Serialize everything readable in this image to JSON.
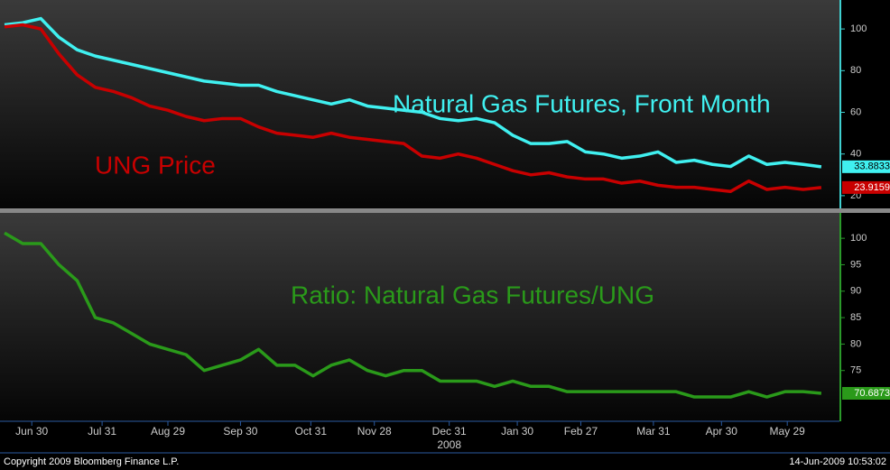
{
  "chart_data": [
    {
      "type": "line",
      "x": [
        -12,
        -4,
        4,
        12,
        20,
        28,
        36,
        44,
        52,
        60,
        68,
        76,
        84,
        92,
        100,
        108,
        116,
        124,
        132,
        140,
        148,
        156,
        164,
        172,
        180,
        188,
        196,
        204,
        212,
        220,
        228,
        236,
        244,
        252,
        260,
        268,
        276,
        284,
        292,
        300,
        308,
        316,
        324,
        332,
        340,
        348
      ],
      "xlim": [
        -14,
        356
      ],
      "ylim": [
        13.9,
        113.9
      ],
      "yticks": [
        20,
        40,
        60,
        80,
        100
      ],
      "axis_color": "#3fd0d0",
      "series": [
        {
          "name": "Natural Gas Futures, Front Month",
          "color": "#40f0f0",
          "values": [
            102,
            103,
            105,
            96,
            90,
            87,
            85,
            83,
            81,
            79,
            77,
            75,
            74,
            73,
            73,
            70,
            68,
            66,
            64,
            66,
            63,
            62,
            61,
            60,
            57,
            56,
            57,
            55,
            49,
            45,
            45,
            46,
            41,
            40,
            38,
            39,
            41,
            36,
            37,
            35,
            34,
            39,
            35,
            36,
            35,
            33.8833
          ]
        },
        {
          "name": "UNG Price",
          "color": "#c80000",
          "values": [
            101,
            102,
            100,
            88,
            78,
            72,
            70,
            67,
            63,
            61,
            58,
            56,
            57,
            57,
            53,
            50,
            49,
            48,
            50,
            48,
            47,
            46,
            45,
            39,
            38,
            40,
            38,
            35,
            32,
            30,
            31,
            29,
            28,
            28,
            26,
            27,
            25,
            24,
            24,
            23,
            22,
            27,
            23,
            24,
            23,
            23.9159
          ]
        }
      ]
    },
    {
      "type": "line",
      "x": [
        -12,
        -4,
        4,
        12,
        20,
        28,
        36,
        44,
        52,
        60,
        68,
        76,
        84,
        92,
        100,
        108,
        116,
        124,
        132,
        140,
        148,
        156,
        164,
        172,
        180,
        188,
        196,
        204,
        212,
        220,
        228,
        236,
        244,
        252,
        260,
        268,
        276,
        284,
        292,
        300,
        308,
        316,
        324,
        332,
        340,
        348
      ],
      "xlim": [
        -14,
        356
      ],
      "xticks": [
        {
          "value": 0,
          "label": "Jun 30"
        },
        {
          "value": 31,
          "label": "Jul 31"
        },
        {
          "value": 60,
          "label": "Aug 29"
        },
        {
          "value": 92,
          "label": "Sep 30"
        },
        {
          "value": 123,
          "label": "Oct 31"
        },
        {
          "value": 151,
          "label": "Nov 28"
        },
        {
          "value": 184,
          "label": "Dec 31"
        },
        {
          "value": 214,
          "label": "Jan 30"
        },
        {
          "value": 242,
          "label": "Feb 27"
        },
        {
          "value": 274,
          "label": "Mar 31"
        },
        {
          "value": 304,
          "label": "Apr 30"
        },
        {
          "value": 333,
          "label": "May 29"
        }
      ],
      "year_label": "2008",
      "ylim": [
        65.4,
        104.8
      ],
      "yticks": [
        75,
        80,
        85,
        90,
        95,
        100
      ],
      "axis_color": "#2a9a2a",
      "series": [
        {
          "name": "Ratio: Natural Gas Futures/UNG",
          "color": "#2a9a1a",
          "values": [
            101,
            99,
            99,
            95,
            92,
            85,
            84,
            82,
            80,
            79,
            78,
            75,
            76,
            77,
            79,
            76,
            76,
            74,
            76,
            77,
            75,
            74,
            75,
            75,
            73,
            73,
            73,
            72,
            73,
            72,
            72,
            71,
            71,
            71,
            71,
            71,
            71,
            71,
            70,
            70,
            70,
            71,
            70,
            71,
            71,
            70.6873
          ]
        }
      ]
    }
  ],
  "footer": {
    "copyright": "Copyright 2009 Bloomberg Finance L.P.",
    "timestamp": "14-Jun-2009 10:53:02"
  }
}
